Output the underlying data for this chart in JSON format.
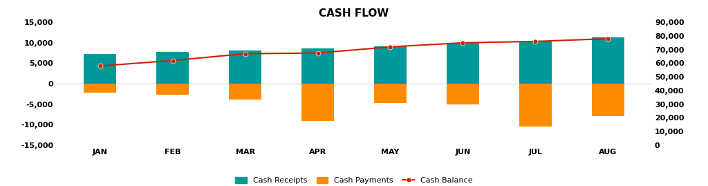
{
  "months": [
    "JAN",
    "FEB",
    "MAR",
    "APR",
    "MAY",
    "JUN",
    "JUL",
    "AUG"
  ],
  "cash_receipts": [
    7200,
    7700,
    8200,
    8700,
    9200,
    9900,
    10400,
    11300
  ],
  "cash_payments": [
    -2200,
    -2700,
    -3800,
    -9200,
    -4800,
    -5000,
    -10500,
    -8000
  ],
  "cash_balance": [
    58000,
    62000,
    67000,
    67500,
    72000,
    75000,
    76000,
    78000
  ],
  "bar_color_receipts": "#009999",
  "bar_color_payments": "#FF8C00",
  "line_color": "#CC2200",
  "line_marker": "o",
  "line_marker_color": "#CC2200",
  "title": "CASH FLOW",
  "title_fontsize": 11,
  "title_fontweight": "bold",
  "left_ylim": [
    -15000,
    15000
  ],
  "right_ylim": [
    0,
    90000
  ],
  "left_yticks": [
    -15000,
    -10000,
    -5000,
    0,
    5000,
    10000,
    15000
  ],
  "right_yticks": [
    0,
    10000,
    20000,
    30000,
    40000,
    50000,
    60000,
    70000,
    80000,
    90000
  ],
  "legend_labels": [
    "Cash Receipts",
    "Cash Payments",
    "Cash Balance"
  ],
  "background_color": "#ffffff",
  "bar_width": 0.45,
  "tick_fontsize": 8,
  "tick_fontweight": "bold",
  "label_fontsize": 8
}
